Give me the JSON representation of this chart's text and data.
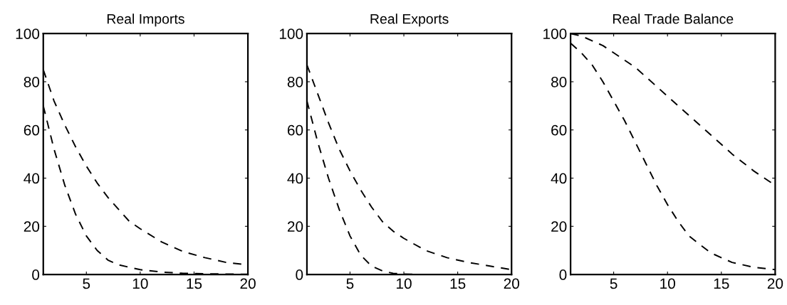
{
  "chart_data": [
    {
      "type": "line",
      "title": "Real Imports",
      "line_style": "dashed",
      "xlim": [
        1,
        20
      ],
      "xticks": [
        5,
        10,
        15,
        20
      ],
      "ylim": [
        0,
        100
      ],
      "yticks": [
        0,
        20,
        40,
        60,
        80,
        100
      ],
      "grid": false,
      "legend": false,
      "series": [
        {
          "color": "#000000",
          "x": [
            1,
            2,
            3,
            4,
            5,
            6,
            7,
            8,
            9,
            10,
            12,
            14,
            16,
            18,
            20
          ],
          "values": [
            85,
            72,
            62,
            53,
            45,
            38,
            32,
            27,
            22,
            19,
            13.5,
            9.5,
            7,
            5,
            4
          ]
        },
        {
          "color": "#000000",
          "x": [
            1,
            2,
            3,
            4,
            5,
            6,
            7,
            8,
            9,
            10,
            12,
            14,
            16,
            18,
            20
          ],
          "values": [
            70,
            52,
            37,
            25,
            16,
            10,
            6,
            4,
            3,
            2,
            1,
            0.5,
            0.3,
            0.2,
            0.1
          ]
        }
      ]
    },
    {
      "type": "line",
      "title": "Real Exports",
      "line_style": "dashed",
      "xlim": [
        1,
        20
      ],
      "xticks": [
        5,
        10,
        15,
        20
      ],
      "ylim": [
        0,
        100
      ],
      "yticks": [
        0,
        20,
        40,
        60,
        80,
        100
      ],
      "grid": false,
      "legend": false,
      "series": [
        {
          "color": "#000000",
          "x": [
            1,
            2,
            3,
            4,
            5,
            6,
            7,
            8,
            9,
            10,
            12,
            14,
            16,
            18,
            20
          ],
          "values": [
            87,
            75,
            63,
            52,
            43,
            35,
            28,
            22,
            18,
            15,
            10,
            7,
            5,
            3.5,
            2
          ]
        },
        {
          "color": "#000000",
          "x": [
            1,
            2,
            3,
            4,
            5,
            6,
            7,
            8,
            9,
            10,
            12,
            14,
            16,
            18,
            20
          ],
          "values": [
            72,
            55,
            40,
            27,
            16,
            8,
            3.5,
            1.5,
            0.5,
            0.2,
            0,
            0,
            0,
            0,
            0
          ]
        }
      ]
    },
    {
      "type": "line",
      "title": "Real Trade Balance",
      "line_style": "dashed",
      "xlim": [
        1,
        20
      ],
      "xticks": [
        5,
        10,
        15,
        20
      ],
      "ylim": [
        0,
        100
      ],
      "yticks": [
        0,
        20,
        40,
        60,
        80,
        100
      ],
      "grid": false,
      "legend": false,
      "series": [
        {
          "color": "#000000",
          "x": [
            1,
            2,
            3,
            4,
            5,
            6,
            7,
            8,
            9,
            10,
            12,
            14,
            16,
            18,
            20
          ],
          "values": [
            100,
            99,
            97,
            95,
            92,
            89,
            86,
            82,
            78,
            74,
            66,
            58,
            50,
            43,
            37
          ]
        },
        {
          "color": "#000000",
          "x": [
            1,
            2,
            3,
            4,
            5,
            6,
            7,
            8,
            9,
            10,
            11,
            12,
            14,
            16,
            18,
            20
          ],
          "values": [
            96,
            92,
            87,
            80,
            72,
            64,
            55,
            46,
            37,
            29,
            22,
            16,
            9,
            5,
            3,
            2
          ]
        }
      ]
    }
  ]
}
